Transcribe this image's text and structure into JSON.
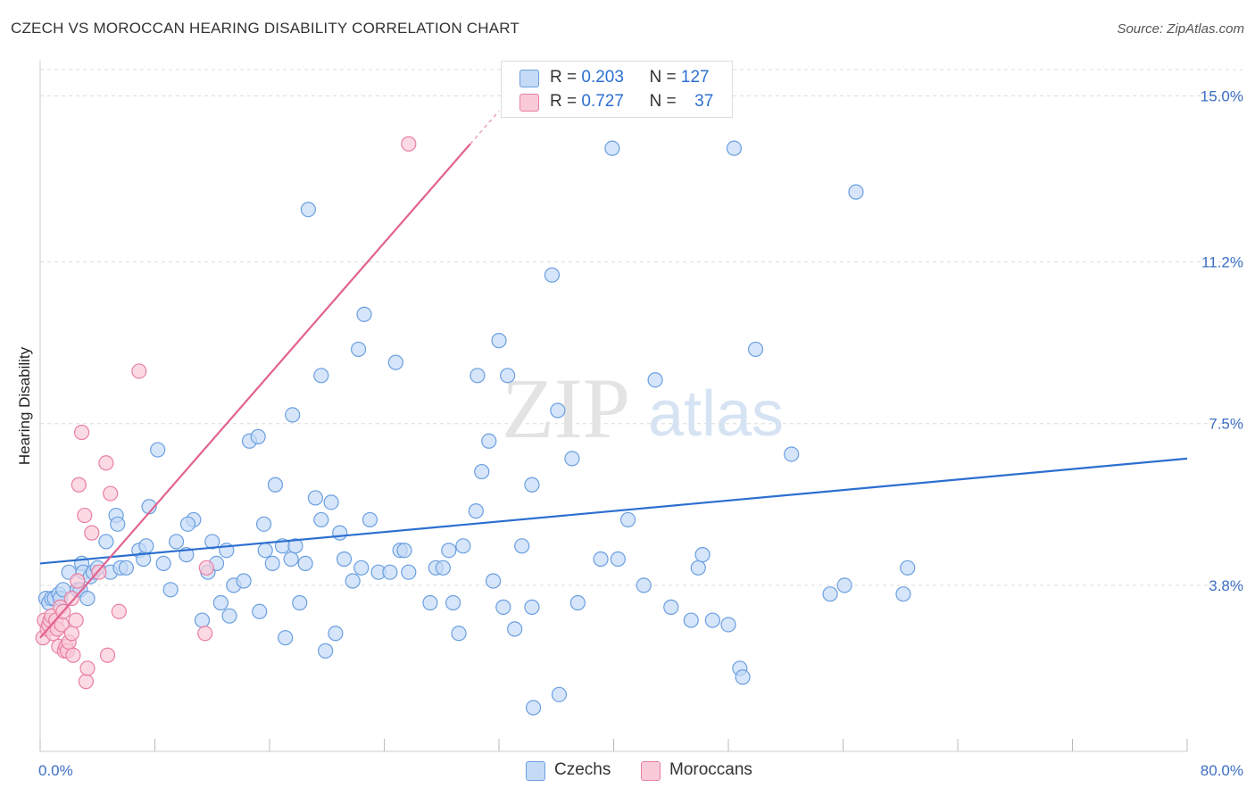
{
  "header": {
    "title": "CZECH VS MOROCCAN HEARING DISABILITY CORRELATION CHART",
    "source": "Source: ZipAtlas.com"
  },
  "watermark": {
    "zip": "ZIP",
    "atlas": "atlas"
  },
  "legend": {
    "r_label": "R =",
    "n_label": "N =",
    "rows": [
      {
        "r": "0.203",
        "n": "127"
      },
      {
        "r": "0.727",
        "n": "37"
      }
    ]
  },
  "bottom_legend": [
    {
      "label": "Czechs"
    },
    {
      "label": "Moroccans"
    }
  ],
  "chart_data": {
    "type": "scatter",
    "title": "CZECH VS MOROCCAN HEARING DISABILITY CORRELATION CHART",
    "xlabel": "",
    "ylabel": "Hearing Disability",
    "xlim": [
      0,
      80
    ],
    "ylim": [
      0,
      15.6
    ],
    "x_tick_labels": [
      "0.0%",
      "80.0%"
    ],
    "y_ticks": [
      3.8,
      7.5,
      11.2,
      15.0
    ],
    "y_tick_labels": [
      "3.8%",
      "7.5%",
      "11.2%",
      "15.0%"
    ],
    "grid": true,
    "legend_position": "top-center",
    "series": [
      {
        "name": "Czechs",
        "color": "#6a9fe0",
        "fill": "#c5daf6",
        "trend": {
          "x": [
            0,
            80
          ],
          "y": [
            4.3,
            6.7
          ]
        },
        "points": [
          [
            0.4,
            3.5
          ],
          [
            0.6,
            3.4
          ],
          [
            0.8,
            3.5
          ],
          [
            1.0,
            3.5
          ],
          [
            1.3,
            3.6
          ],
          [
            1.4,
            3.5
          ],
          [
            1.6,
            3.7
          ],
          [
            2.0,
            4.1
          ],
          [
            2.6,
            3.7
          ],
          [
            2.8,
            3.7
          ],
          [
            2.9,
            4.3
          ],
          [
            3.0,
            4.1
          ],
          [
            3.3,
            3.5
          ],
          [
            3.5,
            4.0
          ],
          [
            3.7,
            4.1
          ],
          [
            4.0,
            4.2
          ],
          [
            4.6,
            4.8
          ],
          [
            4.9,
            4.1
          ],
          [
            5.3,
            5.4
          ],
          [
            5.4,
            5.2
          ],
          [
            5.6,
            4.2
          ],
          [
            6.0,
            4.2
          ],
          [
            6.9,
            4.6
          ],
          [
            7.2,
            4.4
          ],
          [
            7.4,
            4.7
          ],
          [
            7.6,
            5.6
          ],
          [
            8.2,
            6.9
          ],
          [
            8.6,
            4.3
          ],
          [
            9.1,
            3.7
          ],
          [
            9.5,
            4.8
          ],
          [
            10.2,
            4.5
          ],
          [
            10.7,
            5.3
          ],
          [
            10.3,
            5.2
          ],
          [
            11.3,
            3.0
          ],
          [
            11.7,
            4.1
          ],
          [
            12.0,
            4.8
          ],
          [
            12.3,
            4.3
          ],
          [
            12.6,
            3.4
          ],
          [
            13.0,
            4.6
          ],
          [
            13.2,
            3.1
          ],
          [
            13.5,
            3.8
          ],
          [
            14.2,
            3.9
          ],
          [
            14.6,
            7.1
          ],
          [
            15.2,
            7.2
          ],
          [
            15.3,
            3.2
          ],
          [
            15.6,
            5.2
          ],
          [
            15.7,
            4.6
          ],
          [
            16.2,
            4.3
          ],
          [
            16.4,
            6.1
          ],
          [
            16.9,
            4.7
          ],
          [
            17.1,
            2.6
          ],
          [
            17.5,
            4.4
          ],
          [
            17.6,
            7.7
          ],
          [
            17.8,
            4.7
          ],
          [
            18.1,
            3.4
          ],
          [
            18.5,
            4.3
          ],
          [
            18.7,
            12.4
          ],
          [
            19.2,
            5.8
          ],
          [
            19.6,
            5.3
          ],
          [
            19.6,
            8.6
          ],
          [
            19.9,
            2.3
          ],
          [
            20.3,
            5.7
          ],
          [
            20.6,
            2.7
          ],
          [
            20.9,
            5.0
          ],
          [
            21.2,
            4.4
          ],
          [
            21.8,
            3.9
          ],
          [
            22.2,
            9.2
          ],
          [
            22.4,
            4.2
          ],
          [
            22.6,
            10.0
          ],
          [
            23.0,
            5.3
          ],
          [
            23.6,
            4.1
          ],
          [
            24.4,
            4.1
          ],
          [
            24.8,
            8.9
          ],
          [
            25.1,
            4.6
          ],
          [
            25.4,
            4.6
          ],
          [
            25.7,
            4.1
          ],
          [
            27.2,
            3.4
          ],
          [
            27.6,
            4.2
          ],
          [
            28.1,
            4.2
          ],
          [
            28.5,
            4.6
          ],
          [
            28.8,
            3.4
          ],
          [
            29.2,
            2.7
          ],
          [
            29.5,
            4.7
          ],
          [
            30.4,
            5.5
          ],
          [
            30.5,
            8.6
          ],
          [
            30.8,
            6.4
          ],
          [
            31.3,
            7.1
          ],
          [
            31.6,
            3.9
          ],
          [
            32.0,
            9.4
          ],
          [
            32.3,
            3.3
          ],
          [
            32.6,
            8.6
          ],
          [
            33.1,
            2.8
          ],
          [
            33.6,
            4.7
          ],
          [
            34.3,
            6.1
          ],
          [
            34.4,
            1.0
          ],
          [
            34.3,
            3.3
          ],
          [
            35.7,
            10.9
          ],
          [
            36.1,
            7.8
          ],
          [
            36.2,
            1.3
          ],
          [
            37.1,
            6.7
          ],
          [
            37.5,
            3.4
          ],
          [
            39.1,
            4.4
          ],
          [
            39.9,
            13.8
          ],
          [
            40.3,
            4.4
          ],
          [
            41.0,
            5.3
          ],
          [
            42.1,
            3.8
          ],
          [
            42.9,
            8.5
          ],
          [
            44.0,
            3.3
          ],
          [
            45.4,
            3.0
          ],
          [
            45.9,
            4.2
          ],
          [
            46.2,
            4.5
          ],
          [
            46.9,
            3.0
          ],
          [
            48.0,
            2.9
          ],
          [
            48.4,
            13.8
          ],
          [
            48.8,
            1.9
          ],
          [
            49.0,
            1.7
          ],
          [
            49.9,
            9.2
          ],
          [
            52.4,
            6.8
          ],
          [
            55.1,
            3.6
          ],
          [
            56.1,
            3.8
          ],
          [
            56.9,
            12.8
          ],
          [
            60.2,
            3.6
          ],
          [
            60.5,
            4.2
          ]
        ]
      },
      {
        "name": "Moroccans",
        "color": "#e97fa2",
        "fill": "#f9cad8",
        "trend": {
          "x": [
            0,
            30.0
          ],
          "y": [
            2.6,
            13.9
          ]
        },
        "points": [
          [
            0.2,
            2.6
          ],
          [
            0.3,
            3.0
          ],
          [
            0.5,
            2.8
          ],
          [
            0.6,
            2.9
          ],
          [
            0.7,
            3.0
          ],
          [
            0.8,
            3.1
          ],
          [
            0.9,
            2.7
          ],
          [
            1.1,
            3.0
          ],
          [
            1.2,
            2.8
          ],
          [
            1.3,
            2.4
          ],
          [
            1.4,
            3.3
          ],
          [
            1.5,
            2.9
          ],
          [
            1.6,
            3.2
          ],
          [
            1.7,
            2.3
          ],
          [
            1.8,
            2.4
          ],
          [
            1.9,
            2.3
          ],
          [
            2.0,
            2.5
          ],
          [
            2.2,
            2.7
          ],
          [
            2.2,
            3.5
          ],
          [
            2.3,
            2.2
          ],
          [
            2.5,
            3.0
          ],
          [
            2.6,
            3.9
          ],
          [
            2.7,
            6.1
          ],
          [
            2.9,
            7.3
          ],
          [
            3.1,
            5.4
          ],
          [
            3.2,
            1.6
          ],
          [
            3.3,
            1.9
          ],
          [
            3.6,
            5.0
          ],
          [
            4.1,
            4.1
          ],
          [
            4.6,
            6.6
          ],
          [
            4.7,
            2.2
          ],
          [
            4.9,
            5.9
          ],
          [
            5.5,
            3.2
          ],
          [
            6.9,
            8.7
          ],
          [
            11.5,
            2.7
          ],
          [
            11.6,
            4.2
          ],
          [
            25.7,
            13.9
          ]
        ]
      }
    ]
  }
}
